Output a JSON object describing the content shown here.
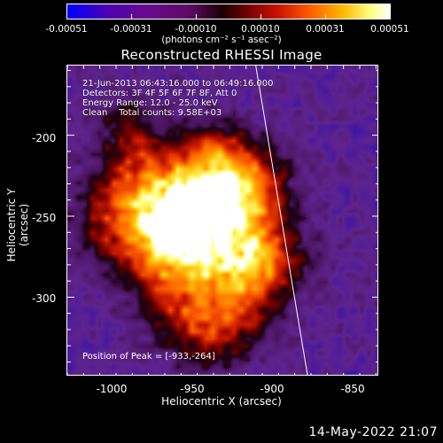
{
  "colorbar": {
    "tick_labels": [
      "-0.00051",
      "-0.00031",
      "-0.00010",
      "0.00010",
      "0.00031",
      "0.00051"
    ],
    "ticks": [
      -0.00051,
      -0.00031,
      -0.0001,
      0.0001,
      0.00031,
      0.00051
    ],
    "range": [
      -0.00051,
      0.00051
    ],
    "units": "(photons cm⁻² s⁻¹ asec⁻²)"
  },
  "title": "Reconstructed RHESSI Image",
  "info_lines": [
    "21-Jun-2013 06:43:16.000 to 06:49:16.000",
    "Detectors: 3F 4F 5F 6F 7F 8F, Att 0",
    "Energy Range: 12.0 - 25.0 keV",
    "Clean    Total counts: 9.58E+03"
  ],
  "peak_text": "Position of Peak = [-933,-264]",
  "chart_data": {
    "type": "heatmap",
    "title": "Reconstructed RHESSI Image",
    "xlabel": "Heliocentric X (arcsec)",
    "ylabel": "Heliocentric Y (arcsec)",
    "xlim": [
      -1025,
      -833
    ],
    "ylim": [
      -349,
      -157
    ],
    "xticks": [
      -1000,
      -950,
      -900,
      -850
    ],
    "xtick_labels": [
      "-1000",
      "-950",
      "-900",
      "-850"
    ],
    "yticks": [
      -300,
      -250,
      -200
    ],
    "ytick_labels": [
      "-300",
      "-250",
      "-200"
    ],
    "peak": [
      -933,
      -264
    ],
    "limb_line": [
      [
        -909,
        -157
      ],
      [
        -877,
        -349
      ]
    ],
    "colorbar_range": [
      -0.00051,
      0.00051
    ]
  },
  "timestamp": "14-May-2022 21:07"
}
